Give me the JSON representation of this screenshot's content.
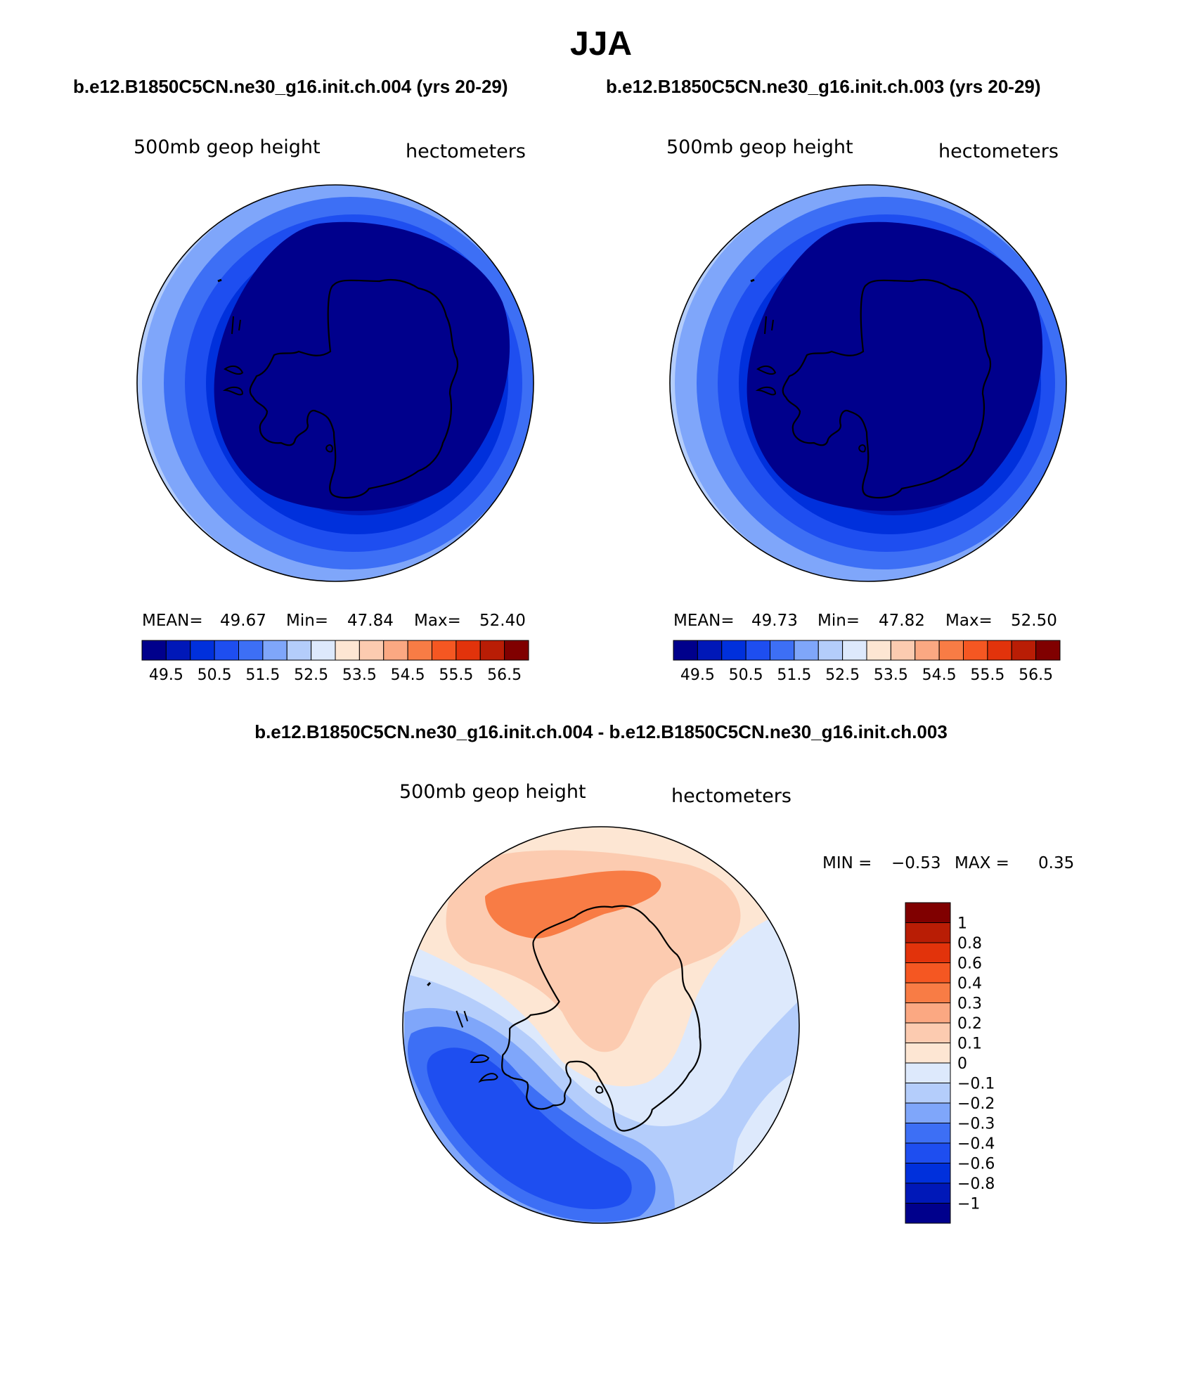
{
  "figure": {
    "season": "JJA",
    "header_left": "b.e12.B1850C5CN.ne30_g16.init.ch.004 (yrs 20-29)",
    "header_right": "b.e12.B1850C5CN.ne30_g16.init.ch.003 (yrs 20-29)",
    "diff_title": "b.e12.B1850C5CN.ne30_g16.init.ch.004 - b.e12.B1850C5CN.ne30_g16.init.ch.003"
  },
  "panels": [
    {
      "variable": "500mb geop height",
      "units": "hectometers",
      "stats": {
        "mean_label": "MEAN=",
        "mean": "49.67",
        "min_label": "Min=",
        "min": "47.84",
        "max_label": "Max=",
        "max": "52.40"
      }
    },
    {
      "variable": "500mb geop height",
      "units": "hectometers",
      "stats": {
        "mean_label": "MEAN=",
        "mean": "49.73",
        "min_label": "Min=",
        "min": "47.82",
        "max_label": "Max=",
        "max": "52.50"
      }
    }
  ],
  "diff_panel": {
    "variable": "500mb geop height",
    "units": "hectometers",
    "min_label": "MIN =",
    "min": "−0.53",
    "max_label": "MAX =",
    "max": "0.35"
  },
  "abs_colorbar": {
    "colors": [
      "#00008c",
      "#0018b8",
      "#0030dc",
      "#1e4ef0",
      "#3d6ff5",
      "#7fa6fa",
      "#b4cdfb",
      "#dde9fc",
      "#fde6d3",
      "#fccbb0",
      "#fba882",
      "#f87c45",
      "#f55722",
      "#e2330b",
      "#b91d05",
      "#800000"
    ],
    "labels": [
      "49.5",
      "50.5",
      "51.5",
      "52.5",
      "53.5",
      "54.5",
      "55.5",
      "56.5"
    ]
  },
  "diff_colorbar": {
    "colors": [
      "#00008c",
      "#0018b8",
      "#0030dc",
      "#1e4ef0",
      "#3d6ff5",
      "#7fa6fa",
      "#b4cdfb",
      "#dde9fc",
      "#fde6d3",
      "#fccbb0",
      "#fba882",
      "#f87c45",
      "#f55722",
      "#e2330b",
      "#b91d05",
      "#800000"
    ],
    "labels": [
      "−1",
      "−0.8",
      "−0.6",
      "−0.4",
      "−0.3",
      "−0.2",
      "−0.1",
      "0",
      "0.1",
      "0.2",
      "0.3",
      "0.4",
      "0.6",
      "0.8",
      "1"
    ]
  }
}
